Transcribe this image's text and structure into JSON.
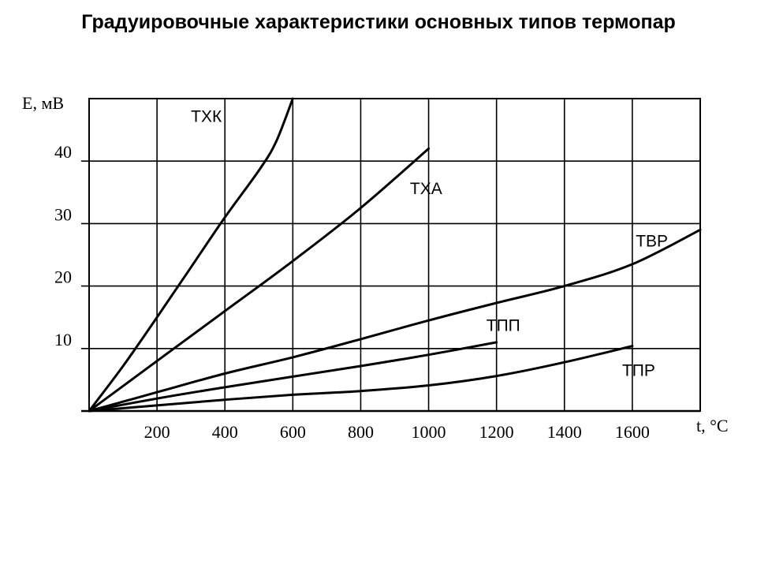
{
  "chart_data": {
    "type": "line",
    "title": "Градуировочные характеристики основных типов термопар",
    "xlabel": "t, °C",
    "ylabel": "E, мВ",
    "xlim": [
      0,
      1800
    ],
    "ylim": [
      0,
      50
    ],
    "grid": true,
    "x_ticks": [
      200,
      400,
      600,
      800,
      1000,
      1200,
      1400,
      1600
    ],
    "y_ticks": [
      10,
      20,
      30,
      40
    ],
    "series": [
      {
        "name": "ТХК",
        "points": [
          [
            0,
            0
          ],
          [
            100,
            7.2
          ],
          [
            200,
            15
          ],
          [
            300,
            23
          ],
          [
            400,
            31
          ],
          [
            500,
            38.5
          ],
          [
            550,
            43
          ],
          [
            600,
            50
          ]
        ],
        "label_at": [
          300,
          46.3
        ]
      },
      {
        "name": "ТХА",
        "points": [
          [
            0,
            0
          ],
          [
            200,
            8
          ],
          [
            400,
            16
          ],
          [
            600,
            24
          ],
          [
            800,
            32.5
          ],
          [
            1000,
            42
          ]
        ],
        "label_at": [
          945,
          34.7
        ]
      },
      {
        "name": "ТВР",
        "points": [
          [
            0,
            0
          ],
          [
            200,
            3
          ],
          [
            400,
            6
          ],
          [
            600,
            8.6
          ],
          [
            800,
            11.5
          ],
          [
            1000,
            14.5
          ],
          [
            1200,
            17.3
          ],
          [
            1400,
            20
          ],
          [
            1600,
            23.5
          ],
          [
            1800,
            29
          ]
        ],
        "label_at": [
          1610,
          26.3
        ]
      },
      {
        "name": "ТПП",
        "points": [
          [
            0,
            0
          ],
          [
            200,
            2
          ],
          [
            400,
            3.8
          ],
          [
            600,
            5.5
          ],
          [
            800,
            7.2
          ],
          [
            1000,
            9
          ],
          [
            1200,
            11
          ]
        ],
        "label_at": [
          1170,
          12.8
        ]
      },
      {
        "name": "ТПР",
        "points": [
          [
            0,
            0
          ],
          [
            200,
            0.9
          ],
          [
            400,
            1.8
          ],
          [
            600,
            2.6
          ],
          [
            800,
            3.2
          ],
          [
            1000,
            4.1
          ],
          [
            1200,
            5.6
          ],
          [
            1400,
            7.8
          ],
          [
            1600,
            10.4
          ]
        ],
        "label_at": [
          1570,
          5.6
        ]
      }
    ]
  }
}
